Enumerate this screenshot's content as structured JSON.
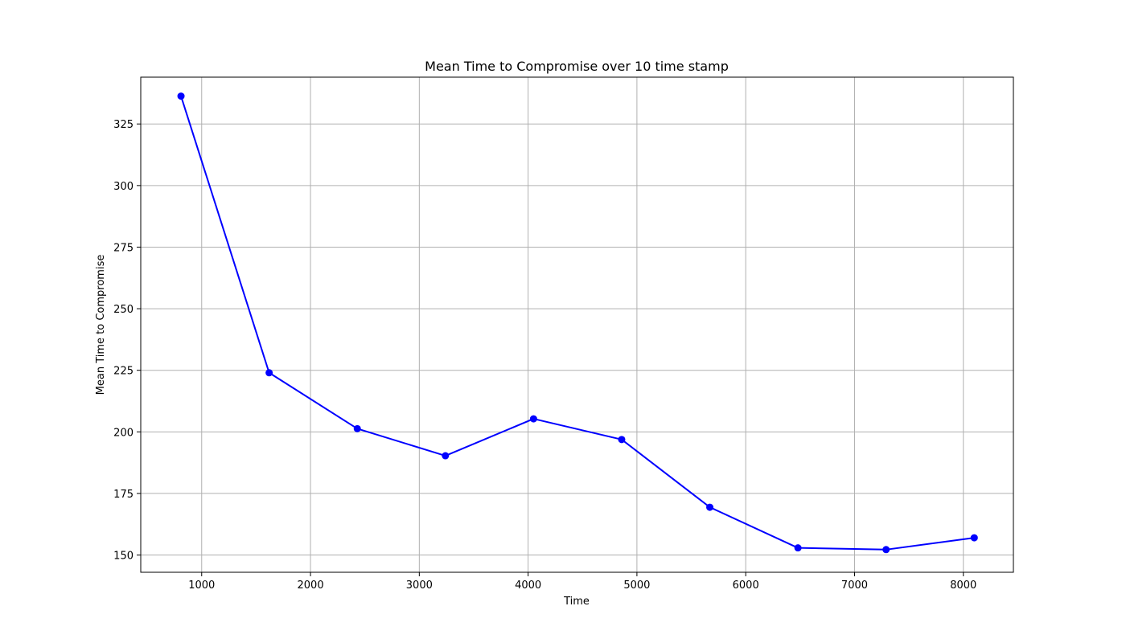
{
  "chart_data": {
    "type": "line",
    "title": "Mean Time to Compromise over 10 time stamp",
    "xlabel": "Time",
    "ylabel": "Mean Time to Compromise",
    "xlim": [
      440,
      8460
    ],
    "ylim": [
      143,
      344
    ],
    "xticks": [
      1000,
      2000,
      3000,
      4000,
      5000,
      6000,
      7000,
      8000
    ],
    "yticks": [
      150,
      175,
      200,
      225,
      250,
      275,
      300,
      325
    ],
    "grid": true,
    "series": [
      {
        "x": [
          810,
          1620,
          2430,
          3240,
          4050,
          4860,
          5670,
          6480,
          7290,
          8100
        ],
        "y": [
          336.3,
          224.0,
          201.3,
          190.3,
          205.3,
          196.9,
          169.4,
          152.9,
          152.2,
          157.0
        ],
        "color": "#0000ff",
        "marker": "circle"
      }
    ],
    "colors": {
      "line": "#0000ff",
      "grid": "#b0b0b0",
      "axes": "#000000"
    }
  }
}
